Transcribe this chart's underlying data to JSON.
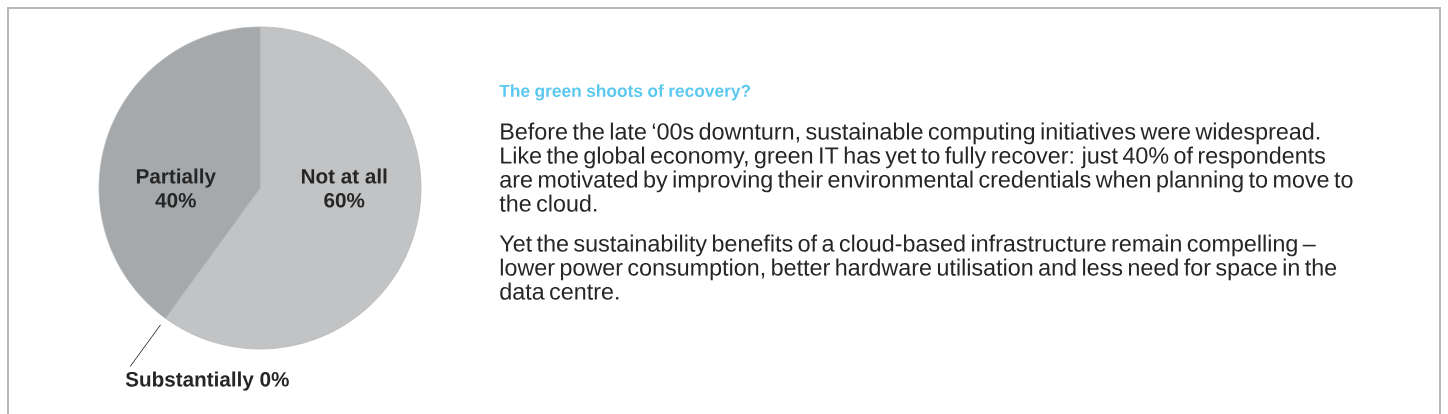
{
  "chart_data": {
    "type": "pie",
    "title": "The green shoots of recovery?",
    "categories": [
      "Not at all",
      "Substantially",
      "Partially"
    ],
    "values": [
      60,
      0,
      40
    ],
    "value_labels": [
      "60%",
      "0%",
      "40%"
    ],
    "colors": [
      "#c2c3c5",
      "#8e9194",
      "#a6a9ac"
    ],
    "annotations": [
      "Before the late ‘00s downturn, sustainable computing initiatives were widespread. Like the global economy, green IT has yet to fully recover: just 40% of respondents are motivated by improving their environmental credentials when planning to move to the cloud.",
      "Yet the sustainability benefits of a cloud-based infrastructure remain compelling – lower power consumption, better hardware utilisation and less need for space in the data centre."
    ]
  }
}
